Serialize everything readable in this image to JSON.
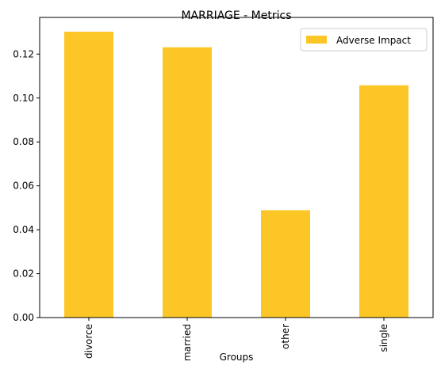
{
  "chart_data": {
    "type": "bar",
    "title": "MARRIAGE - Metrics",
    "xlabel": "Groups",
    "ylabel": "",
    "categories": [
      "divorce",
      "married",
      "other",
      "single"
    ],
    "series": [
      {
        "name": "Adverse Impact",
        "values": [
          0.1302,
          0.1231,
          0.0489,
          0.1058
        ],
        "color": "#fcc726"
      }
    ],
    "ylim": [
      0,
      0.1367
    ],
    "yticks": [
      "0.00",
      "0.02",
      "0.04",
      "0.06",
      "0.08",
      "0.10",
      "0.12"
    ],
    "ytick_values": [
      0,
      0.02,
      0.04,
      0.06,
      0.08,
      0.1,
      0.12
    ],
    "grid": false,
    "legend": "top-right"
  }
}
